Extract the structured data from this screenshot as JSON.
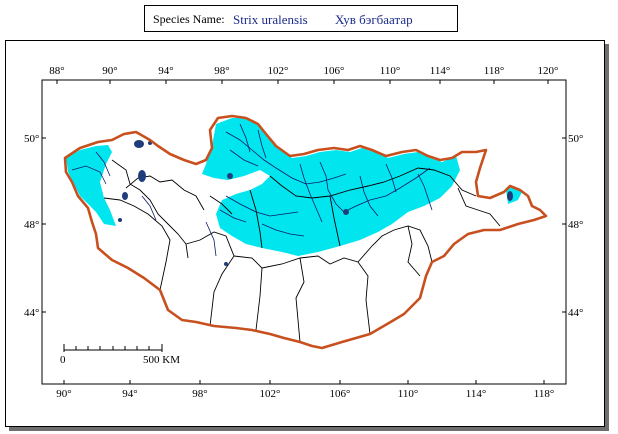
{
  "header": {
    "species_label": "Species Name:",
    "scientific_name": "Strix uralensis",
    "mongolian_name": "Хув бэгбаатар"
  },
  "top_longitudes": [
    "88°",
    "90°",
    "94°",
    "98°",
    "102°",
    "106°",
    "110°",
    "114°",
    "118°",
    "120°"
  ],
  "bottom_longitudes": [
    "90°",
    "94°",
    "98°",
    "102°",
    "106°",
    "110°",
    "114°",
    "118°"
  ],
  "left_latitudes": [
    "50°",
    "48°",
    "44°"
  ],
  "right_latitudes": [
    "50°",
    "48°",
    "44°"
  ],
  "scale_bar": {
    "start_label": "0",
    "end_label": "500 KM"
  },
  "colors": {
    "distribution_fill": "#00e5ee",
    "country_border": "#c8501e",
    "rivers": "#0b1a6b",
    "lakes": "#1f3d7a",
    "aimag_borders": "#000000"
  }
}
